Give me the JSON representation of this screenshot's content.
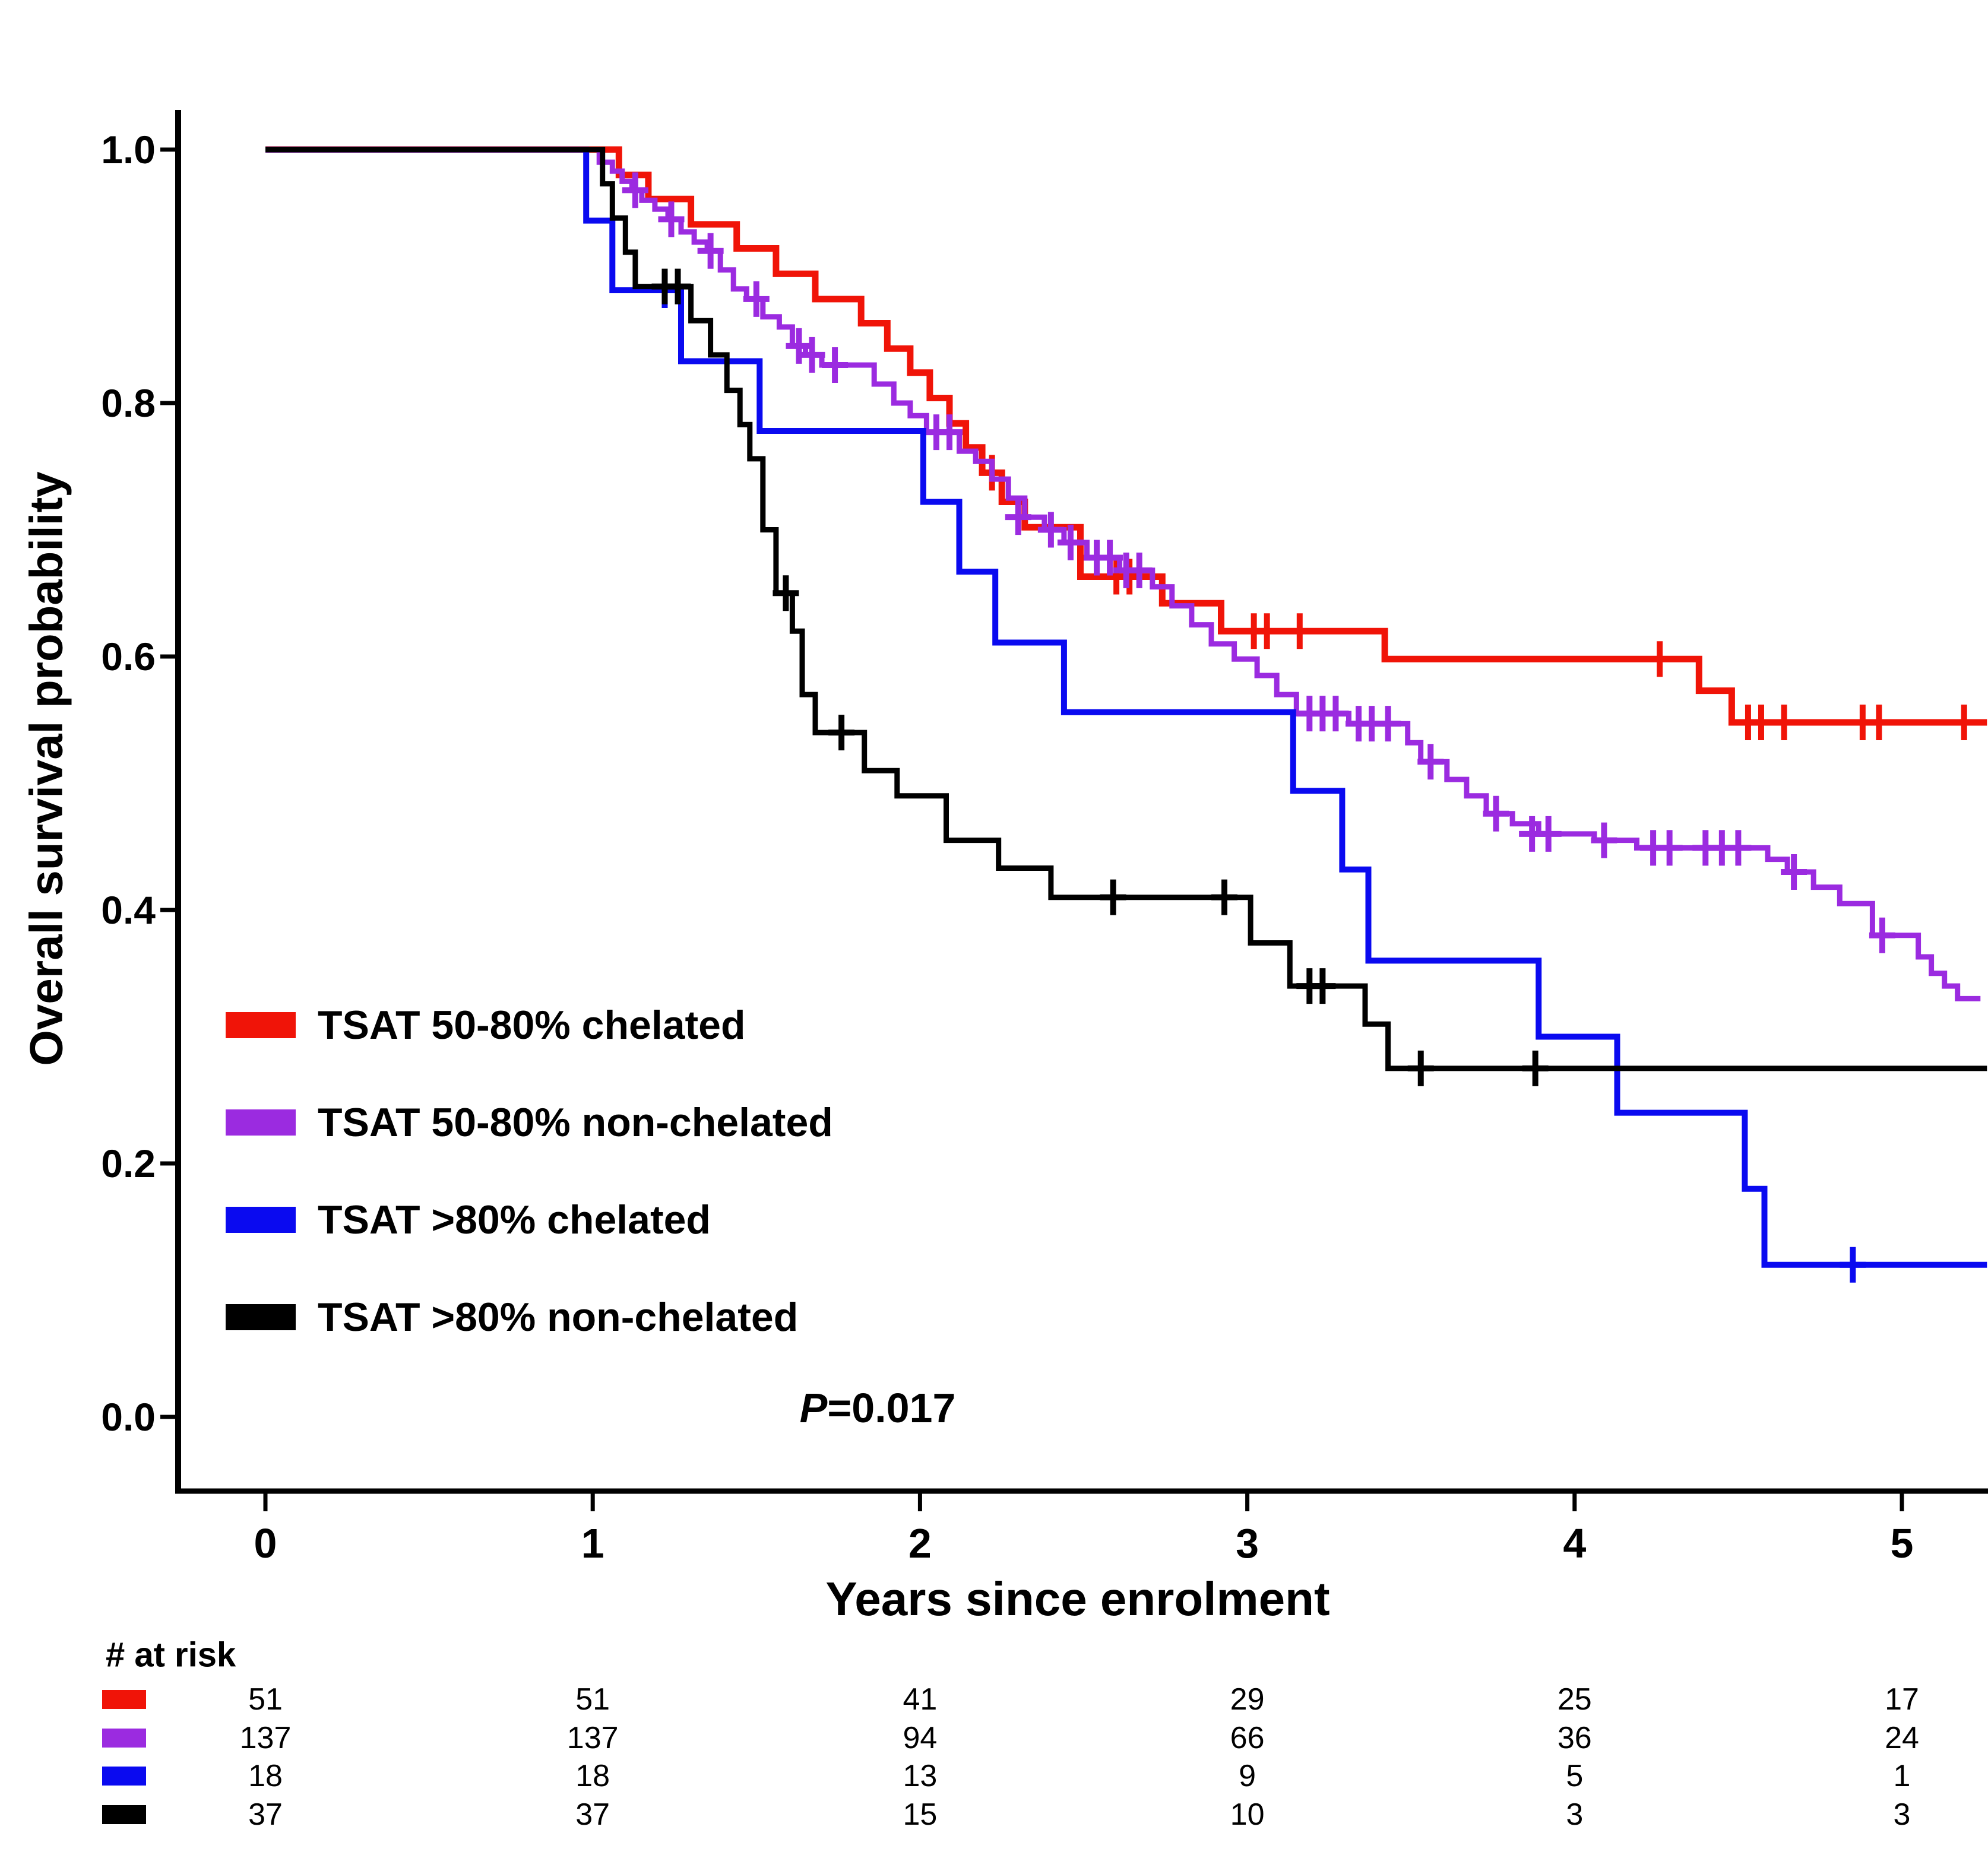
{
  "figure": {
    "y_axis_label": "Overall survival probability",
    "x_axis_label": "Years since enrolment",
    "p_label": "P",
    "p_value": "=0.017",
    "risk_title": "# at risk"
  },
  "chart_data": {
    "type": "line",
    "subtype": "kaplan_meier_step_curves",
    "title": "",
    "xlabel": "Years since enrolment",
    "ylabel": "Overall survival probability",
    "annotation": "P=0.017",
    "xlim": [
      0,
      5.26
    ],
    "ylim": [
      0.0,
      1.0
    ],
    "x_ticks": [
      "0",
      "1",
      "2",
      "3",
      "4",
      "5"
    ],
    "x_tick_values": [
      0,
      1,
      2,
      3,
      4,
      5
    ],
    "y_ticks": [
      "1.0",
      "0.8",
      "0.6",
      "0.4",
      "0.2",
      "0.0"
    ],
    "y_tick_values": [
      1.0,
      0.8,
      0.6,
      0.4,
      0.2,
      0.0
    ],
    "legend_position": "lower-left",
    "grid": false,
    "series": [
      {
        "name": "TSAT 50-80% chelated",
        "color": "#F01408",
        "n": 51,
        "line_width": 11,
        "end_year": 5.26,
        "steps": [
          [
            0,
            1.0
          ],
          [
            1.08,
            0.98
          ],
          [
            1.17,
            0.961
          ],
          [
            1.3,
            0.941
          ],
          [
            1.44,
            0.922
          ],
          [
            1.56,
            0.902
          ],
          [
            1.68,
            0.882
          ],
          [
            1.82,
            0.863
          ],
          [
            1.9,
            0.843
          ],
          [
            1.97,
            0.824
          ],
          [
            2.03,
            0.804
          ],
          [
            2.09,
            0.784
          ],
          [
            2.14,
            0.765
          ],
          [
            2.19,
            0.745
          ],
          [
            2.25,
            0.722
          ],
          [
            2.32,
            0.702
          ],
          [
            2.49,
            0.663
          ],
          [
            2.74,
            0.642
          ],
          [
            2.92,
            0.62
          ],
          [
            3.42,
            0.598
          ],
          [
            4.38,
            0.573
          ],
          [
            4.48,
            0.548
          ]
        ],
        "censors": [
          [
            2.22,
            0.745
          ],
          [
            2.6,
            0.663
          ],
          [
            2.64,
            0.663
          ],
          [
            3.02,
            0.62
          ],
          [
            3.06,
            0.62
          ],
          [
            3.16,
            0.62
          ],
          [
            4.26,
            0.598
          ],
          [
            4.53,
            0.548
          ],
          [
            4.57,
            0.548
          ],
          [
            4.64,
            0.548
          ],
          [
            4.88,
            0.548
          ],
          [
            4.93,
            0.548
          ],
          [
            5.19,
            0.548
          ]
        ]
      },
      {
        "name": "TSAT 50-80% non-chelated",
        "color": "#9B2BE0",
        "n": 137,
        "line_width": 9,
        "end_year": 5.24,
        "steps": [
          [
            0,
            1.0
          ],
          [
            1.02,
            0.99
          ],
          [
            1.06,
            0.983
          ],
          [
            1.09,
            0.975
          ],
          [
            1.12,
            0.968
          ],
          [
            1.15,
            0.96
          ],
          [
            1.19,
            0.953
          ],
          [
            1.23,
            0.945
          ],
          [
            1.27,
            0.935
          ],
          [
            1.31,
            0.927
          ],
          [
            1.35,
            0.92
          ],
          [
            1.39,
            0.905
          ],
          [
            1.43,
            0.89
          ],
          [
            1.47,
            0.882
          ],
          [
            1.52,
            0.868
          ],
          [
            1.57,
            0.86
          ],
          [
            1.61,
            0.845
          ],
          [
            1.65,
            0.838
          ],
          [
            1.7,
            0.83
          ],
          [
            1.86,
            0.815
          ],
          [
            1.92,
            0.8
          ],
          [
            1.97,
            0.79
          ],
          [
            2.02,
            0.777
          ],
          [
            2.12,
            0.762
          ],
          [
            2.17,
            0.754
          ],
          [
            2.22,
            0.74
          ],
          [
            2.27,
            0.725
          ],
          [
            2.32,
            0.71
          ],
          [
            2.38,
            0.7
          ],
          [
            2.44,
            0.69
          ],
          [
            2.51,
            0.678
          ],
          [
            2.61,
            0.668
          ],
          [
            2.71,
            0.655
          ],
          [
            2.77,
            0.64
          ],
          [
            2.83,
            0.625
          ],
          [
            2.89,
            0.61
          ],
          [
            2.96,
            0.598
          ],
          [
            3.03,
            0.585
          ],
          [
            3.09,
            0.57
          ],
          [
            3.15,
            0.555
          ],
          [
            3.31,
            0.547
          ],
          [
            3.49,
            0.532
          ],
          [
            3.53,
            0.517
          ],
          [
            3.61,
            0.503
          ],
          [
            3.67,
            0.49
          ],
          [
            3.73,
            0.476
          ],
          [
            3.81,
            0.468
          ],
          [
            3.89,
            0.46
          ],
          [
            4.06,
            0.455
          ],
          [
            4.19,
            0.449
          ],
          [
            4.59,
            0.44
          ],
          [
            4.65,
            0.43
          ],
          [
            4.73,
            0.418
          ],
          [
            4.81,
            0.405
          ],
          [
            4.91,
            0.38
          ],
          [
            5.05,
            0.363
          ],
          [
            5.09,
            0.35
          ],
          [
            5.13,
            0.34
          ],
          [
            5.17,
            0.33
          ]
        ],
        "censors": [
          [
            1.13,
            0.968
          ],
          [
            1.24,
            0.945
          ],
          [
            1.36,
            0.92
          ],
          [
            1.5,
            0.882
          ],
          [
            1.63,
            0.845
          ],
          [
            1.67,
            0.838
          ],
          [
            1.74,
            0.83
          ],
          [
            2.05,
            0.777
          ],
          [
            2.09,
            0.777
          ],
          [
            2.3,
            0.71
          ],
          [
            2.4,
            0.7
          ],
          [
            2.46,
            0.69
          ],
          [
            2.54,
            0.678
          ],
          [
            2.58,
            0.678
          ],
          [
            2.63,
            0.668
          ],
          [
            2.67,
            0.668
          ],
          [
            3.19,
            0.555
          ],
          [
            3.23,
            0.555
          ],
          [
            3.27,
            0.555
          ],
          [
            3.34,
            0.547
          ],
          [
            3.38,
            0.547
          ],
          [
            3.43,
            0.547
          ],
          [
            3.56,
            0.517
          ],
          [
            3.76,
            0.476
          ],
          [
            3.87,
            0.46
          ],
          [
            3.92,
            0.46
          ],
          [
            4.09,
            0.455
          ],
          [
            4.24,
            0.449
          ],
          [
            4.29,
            0.449
          ],
          [
            4.4,
            0.449
          ],
          [
            4.45,
            0.449
          ],
          [
            4.5,
            0.449
          ],
          [
            4.67,
            0.43
          ],
          [
            4.94,
            0.38
          ]
        ]
      },
      {
        "name": "TSAT >80% chelated",
        "color": "#0A0AF0",
        "n": 18,
        "line_width": 10,
        "end_year": 5.26,
        "steps": [
          [
            0,
            1.0
          ],
          [
            0.98,
            0.944
          ],
          [
            1.06,
            0.889
          ],
          [
            1.27,
            0.833
          ],
          [
            1.51,
            0.778
          ],
          [
            2.01,
            0.722
          ],
          [
            2.12,
            0.667
          ],
          [
            2.23,
            0.611
          ],
          [
            2.44,
            0.556
          ],
          [
            3.14,
            0.494
          ],
          [
            3.29,
            0.432
          ],
          [
            3.37,
            0.36
          ],
          [
            3.89,
            0.3
          ],
          [
            4.13,
            0.24
          ],
          [
            4.52,
            0.18
          ],
          [
            4.58,
            0.12
          ]
        ],
        "censors": [
          [
            1.22,
            0.889
          ],
          [
            4.85,
            0.12
          ]
        ]
      },
      {
        "name": "TSAT >80% non-chelated",
        "color": "#000000",
        "n": 37,
        "line_width": 9,
        "end_year": 5.26,
        "steps": [
          [
            0,
            1.0
          ],
          [
            1.03,
            0.973
          ],
          [
            1.06,
            0.946
          ],
          [
            1.1,
            0.919
          ],
          [
            1.13,
            0.892
          ],
          [
            1.3,
            0.865
          ],
          [
            1.36,
            0.838
          ],
          [
            1.41,
            0.81
          ],
          [
            1.45,
            0.783
          ],
          [
            1.48,
            0.756
          ],
          [
            1.52,
            0.7
          ],
          [
            1.56,
            0.65
          ],
          [
            1.61,
            0.62
          ],
          [
            1.64,
            0.57
          ],
          [
            1.68,
            0.54
          ],
          [
            1.83,
            0.51
          ],
          [
            1.93,
            0.49
          ],
          [
            2.08,
            0.455
          ],
          [
            2.24,
            0.433
          ],
          [
            2.4,
            0.41
          ],
          [
            3.01,
            0.374
          ],
          [
            3.13,
            0.34
          ],
          [
            3.36,
            0.31
          ],
          [
            3.43,
            0.275
          ]
        ],
        "censors": [
          [
            1.22,
            0.892
          ],
          [
            1.26,
            0.892
          ],
          [
            1.59,
            0.65
          ],
          [
            1.76,
            0.54
          ],
          [
            2.59,
            0.41
          ],
          [
            2.93,
            0.41
          ],
          [
            3.19,
            0.34
          ],
          [
            3.23,
            0.34
          ],
          [
            3.53,
            0.275
          ],
          [
            3.88,
            0.275
          ]
        ]
      }
    ],
    "risk_table": {
      "title": "# at risk",
      "columns_years": [
        0,
        1,
        2,
        3,
        4,
        5
      ],
      "rows": [
        {
          "name": "TSAT 50-80% chelated",
          "color": "#F01408",
          "counts": [
            "51",
            "51",
            "41",
            "29",
            "25",
            "17"
          ]
        },
        {
          "name": "TSAT 50-80% non-chelated",
          "color": "#9B2BE0",
          "counts": [
            "137",
            "137",
            "94",
            "66",
            "36",
            "24"
          ]
        },
        {
          "name": "TSAT >80% chelated",
          "color": "#0A0AF0",
          "counts": [
            "18",
            "18",
            "13",
            "9",
            "5",
            "1"
          ]
        },
        {
          "name": "TSAT >80% non-chelated",
          "color": "#000000",
          "counts": [
            "37",
            "37",
            "15",
            "10",
            "3",
            "3"
          ]
        }
      ]
    }
  }
}
